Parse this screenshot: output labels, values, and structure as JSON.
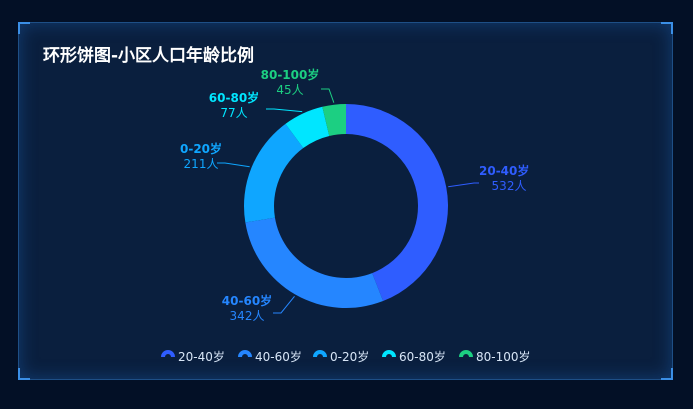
{
  "chart_data": {
    "type": "pie",
    "title": "环形饼图-小区人口年龄比例",
    "unit": "人",
    "slices": [
      {
        "name": "20-40岁",
        "value": 532,
        "color": "#2f5dff"
      },
      {
        "name": "40-60岁",
        "value": 342,
        "color": "#2586ff"
      },
      {
        "name": "0-20岁",
        "value": 211,
        "color": "#0fa6ff"
      },
      {
        "name": "60-80岁",
        "value": 77,
        "color": "#00e6ff"
      },
      {
        "name": "80-100岁",
        "value": 45,
        "color": "#1ccf82"
      }
    ],
    "legend_position": "bottom"
  }
}
